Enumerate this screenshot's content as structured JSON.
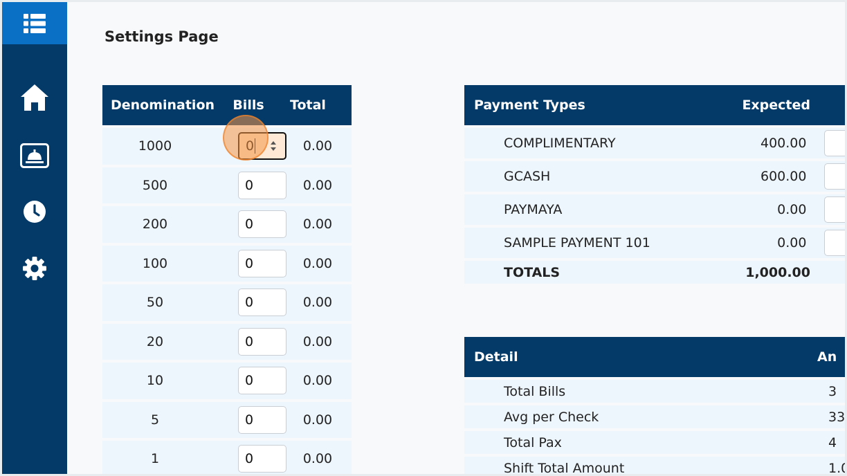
{
  "page": {
    "title": "Settings Page"
  },
  "sidebar": {
    "top_icon": "menu-grid-icon",
    "items": [
      {
        "icon": "home-icon"
      },
      {
        "icon": "service-bell-icon"
      },
      {
        "icon": "clock-icon"
      },
      {
        "icon": "gear-icon"
      }
    ]
  },
  "denomination_table": {
    "headers": {
      "denomination": "Denomination",
      "bills": "Bills",
      "total": "Total"
    },
    "rows": [
      {
        "denomination": "1000",
        "bills": "0",
        "total": "0.00"
      },
      {
        "denomination": "500",
        "bills": "0",
        "total": "0.00"
      },
      {
        "denomination": "200",
        "bills": "0",
        "total": "0.00"
      },
      {
        "denomination": "100",
        "bills": "0",
        "total": "0.00"
      },
      {
        "denomination": "50",
        "bills": "0",
        "total": "0.00"
      },
      {
        "denomination": "20",
        "bills": "0",
        "total": "0.00"
      },
      {
        "denomination": "10",
        "bills": "0",
        "total": "0.00"
      },
      {
        "denomination": "5",
        "bills": "0",
        "total": "0.00"
      },
      {
        "denomination": "1",
        "bills": "0",
        "total": "0.00"
      }
    ]
  },
  "payment_table": {
    "headers": {
      "type": "Payment Types",
      "expected": "Expected"
    },
    "rows": [
      {
        "type": "COMPLIMENTARY",
        "expected": "400.00"
      },
      {
        "type": "GCASH",
        "expected": "600.00"
      },
      {
        "type": "PAYMAYA",
        "expected": "0.00"
      },
      {
        "type": "SAMPLE PAYMENT 101",
        "expected": "0.00"
      }
    ],
    "totals": {
      "label": "TOTALS",
      "expected": "1,000.00"
    }
  },
  "detail_table": {
    "headers": {
      "detail": "Detail",
      "amount": "An"
    },
    "rows": [
      {
        "label": "Total Bills",
        "value": "3"
      },
      {
        "label": "Avg per Check",
        "value": "33"
      },
      {
        "label": "Total Pax",
        "value": "4"
      },
      {
        "label": "Shift Total Amount",
        "value": "1.0"
      }
    ]
  },
  "colors": {
    "navy": "#043a68",
    "accent_blue": "#0a70c6",
    "row_bg": "#eef6fd",
    "highlight": "#f59646"
  }
}
